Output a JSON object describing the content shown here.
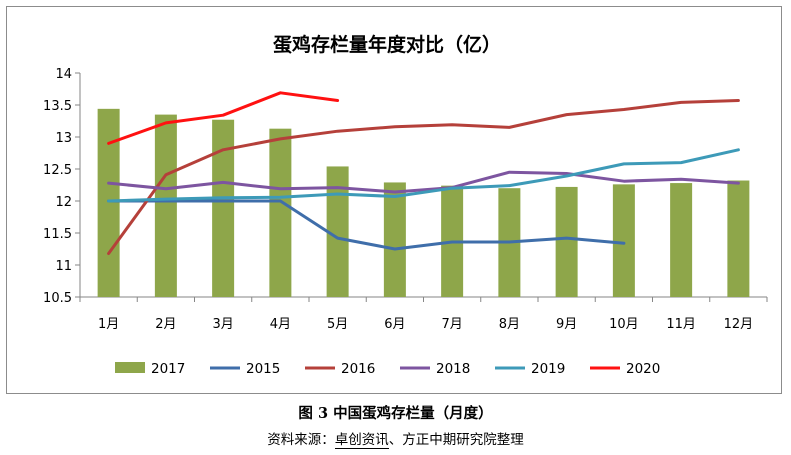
{
  "chart_data": {
    "type": "bar",
    "title": "蛋鸡存栏量年度对比（亿）",
    "xlabel": "",
    "ylabel": "",
    "ylim": [
      10.5,
      14
    ],
    "yticks": [
      "14",
      "13.5",
      "13",
      "12.5",
      "12",
      "11.5",
      "11",
      "10.5"
    ],
    "grid": false,
    "legend_position": "bottom",
    "categories": [
      "1月",
      "2月",
      "3月",
      "4月",
      "5月",
      "6月",
      "7月",
      "8月",
      "9月",
      "10月",
      "11月",
      "12月"
    ],
    "bar_series": {
      "name": "2017",
      "color": "#8ea64a",
      "values": [
        13.44,
        13.35,
        13.27,
        13.13,
        12.54,
        12.29,
        12.24,
        12.2,
        12.22,
        12.26,
        12.28,
        12.32
      ]
    },
    "line_series": [
      {
        "name": "2015",
        "color": "#3f6eaa",
        "values": [
          12.0,
          12.0,
          12.0,
          12.0,
          11.42,
          11.25,
          11.36,
          11.36,
          11.42,
          11.34,
          null,
          null
        ]
      },
      {
        "name": "2016",
        "color": "#b5403a",
        "values": [
          11.18,
          12.41,
          12.8,
          12.97,
          13.09,
          13.16,
          13.19,
          13.15,
          13.35,
          13.43,
          13.54,
          13.57
        ]
      },
      {
        "name": "2018",
        "color": "#7d55a0",
        "values": [
          12.28,
          12.19,
          12.29,
          12.19,
          12.21,
          12.14,
          12.21,
          12.45,
          12.43,
          12.31,
          12.34,
          12.28
        ]
      },
      {
        "name": "2019",
        "color": "#3d9ab8",
        "values": [
          12.0,
          12.03,
          12.05,
          12.06,
          12.11,
          12.07,
          12.2,
          12.24,
          12.39,
          12.58,
          12.6,
          12.8
        ]
      },
      {
        "name": "2020",
        "color": "#ff1111",
        "values": [
          12.9,
          13.22,
          13.34,
          13.69,
          13.57,
          null,
          null,
          null,
          null,
          null,
          null,
          null
        ]
      }
    ],
    "legend": [
      "2017",
      "2015",
      "2016",
      "2018",
      "2019",
      "2020"
    ]
  },
  "caption": {
    "figure": "图 3  中国蛋鸡存栏量（月度）",
    "source_prefix": "资料来源：",
    "source_org": "卓创资讯",
    "source_suffix": "、方正中期研究院整理"
  }
}
